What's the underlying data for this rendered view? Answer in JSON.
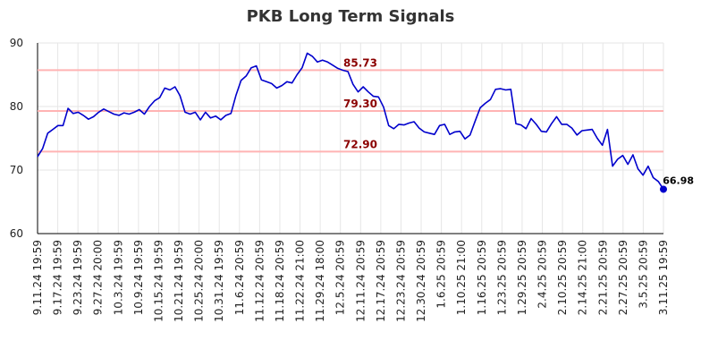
{
  "chart_data": {
    "type": "line",
    "title": "PKB Long Term Signals",
    "xlabel": "",
    "ylabel": "",
    "ylim": [
      60,
      90
    ],
    "yticks": [
      60,
      70,
      80,
      90
    ],
    "grid": true,
    "x_tick_labels": [
      "9.11.24 19:59",
      "9.17.24 19:59",
      "9.23.24 19:59",
      "9.27.24 20:00",
      "10.3.24 19:59",
      "10.9.24 19:59",
      "10.15.24 19:59",
      "10.21.24 19:59",
      "10.25.24 20:00",
      "10.31.24 19:59",
      "11.6.24 20:59",
      "11.12.24 20:59",
      "11.18.24 20:59",
      "11.22.24 21:00",
      "11.29.24 18:00",
      "12.5.24 20:59",
      "12.11.24 20:59",
      "12.17.24 20:59",
      "12.23.24 20:59",
      "12.30.24 20:59",
      "1.6.25 20:59",
      "1.10.25 21:00",
      "1.16.25 20:59",
      "1.23.25 20:59",
      "1.29.25 20:59",
      "2.4.25 20:59",
      "2.10.25 20:59",
      "2.14.25 21:00",
      "2.21.25 20:59",
      "2.27.25 20:59",
      "3.5.25 20:59",
      "3.11.25 19:59"
    ],
    "reference_lines": [
      {
        "value": 85.73,
        "label": "85.73",
        "color": "#ffb3b3"
      },
      {
        "value": 79.3,
        "label": "79.30",
        "color": "#ffb3b3"
      },
      {
        "value": 72.9,
        "label": "72.90",
        "color": "#ffb3b3"
      }
    ],
    "last_value_label": "66.98",
    "line_color": "#0000cc",
    "series": [
      {
        "values": [
          72.1,
          73.4,
          75.8,
          76.4,
          77.0,
          77.0,
          79.7,
          78.9,
          79.1,
          78.6,
          78.0,
          78.4,
          79.1,
          79.6,
          79.2,
          78.8,
          78.6,
          79.0,
          78.8,
          79.1,
          79.5,
          78.8,
          80.0,
          80.9,
          81.4,
          82.9,
          82.6,
          83.1,
          81.7,
          79.1,
          78.8,
          79.1,
          77.9,
          79.1,
          78.2,
          78.5,
          77.9,
          78.6,
          78.9,
          81.8,
          84.1,
          84.8,
          86.1,
          86.4,
          84.2,
          83.9,
          83.6,
          82.9,
          83.3,
          83.9,
          83.7,
          85.0,
          86.1,
          88.4,
          87.9,
          87.0,
          87.3,
          87.0,
          86.5,
          86.0,
          85.7,
          85.5,
          83.5,
          82.3,
          83.1,
          82.3,
          81.6,
          81.5,
          79.9,
          77.0,
          76.5,
          77.2,
          77.1,
          77.4,
          77.6,
          76.6,
          76.0,
          75.8,
          75.6,
          77.0,
          77.2,
          75.6,
          76.0,
          76.1,
          74.9,
          75.5,
          77.7,
          79.8,
          80.5,
          81.1,
          82.7,
          82.8,
          82.6,
          82.7,
          77.3,
          77.1,
          76.5,
          78.1,
          77.2,
          76.1,
          76.0,
          77.3,
          78.4,
          77.2,
          77.2,
          76.6,
          75.5,
          76.2,
          76.3,
          76.4,
          75.0,
          73.9,
          76.4,
          70.6,
          71.7,
          72.3,
          70.9,
          72.4,
          70.2,
          69.2,
          70.6,
          68.8,
          68.2,
          66.98
        ]
      }
    ]
  }
}
